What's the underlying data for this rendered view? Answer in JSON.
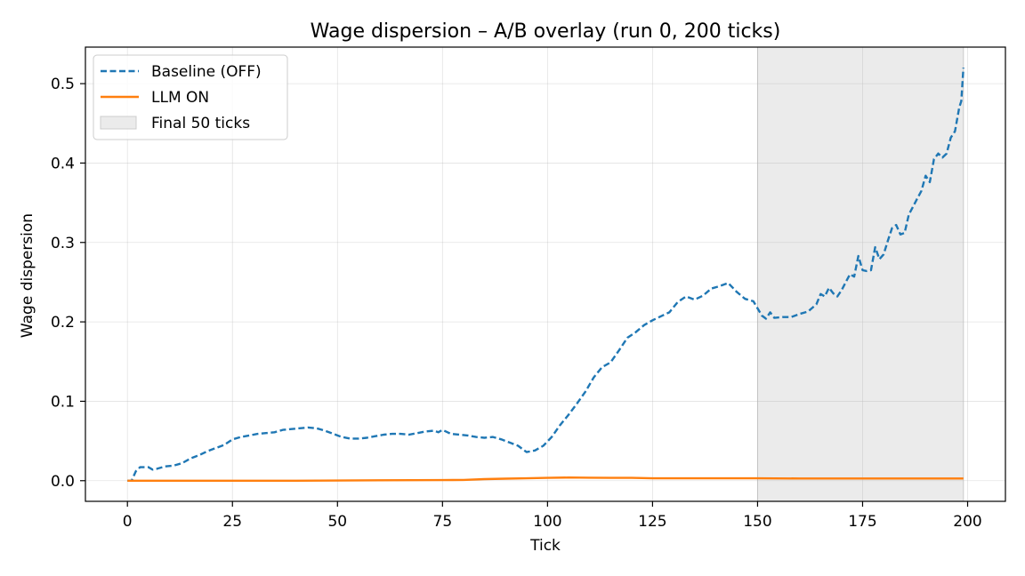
{
  "chart_data": {
    "type": "line",
    "title": "Wage dispersion – A/B overlay (run 0, 200 ticks)",
    "xlabel": "Tick",
    "ylabel": "Wage dispersion",
    "xlim": [
      -10,
      209
    ],
    "ylim": [
      -0.026,
      0.546
    ],
    "xticks": [
      0,
      25,
      50,
      75,
      100,
      125,
      150,
      175,
      200
    ],
    "xtick_labels": [
      "0",
      "25",
      "50",
      "75",
      "100",
      "125",
      "150",
      "175",
      "200"
    ],
    "yticks": [
      0.0,
      0.1,
      0.2,
      0.3,
      0.4,
      0.5
    ],
    "ytick_labels": [
      "0.0",
      "0.1",
      "0.2",
      "0.3",
      "0.4",
      "0.5"
    ],
    "grid": true,
    "legend_position": "upper-left",
    "shaded_region": {
      "label": "Final 50 ticks",
      "x_start": 150,
      "x_end": 199,
      "color": "#ebebeb"
    },
    "series": [
      {
        "name": "Baseline (OFF)",
        "color": "#1f77b4",
        "style": "dashed",
        "points": [
          [
            0,
            0.0
          ],
          [
            1,
            0.0
          ],
          [
            2,
            0.012
          ],
          [
            3,
            0.017
          ],
          [
            5,
            0.017
          ],
          [
            6,
            0.014
          ],
          [
            7,
            0.015
          ],
          [
            9,
            0.018
          ],
          [
            11,
            0.019
          ],
          [
            13,
            0.022
          ],
          [
            15,
            0.028
          ],
          [
            17,
            0.032
          ],
          [
            19,
            0.037
          ],
          [
            21,
            0.041
          ],
          [
            23,
            0.045
          ],
          [
            25,
            0.052
          ],
          [
            27,
            0.055
          ],
          [
            29,
            0.057
          ],
          [
            31,
            0.059
          ],
          [
            33,
            0.06
          ],
          [
            35,
            0.061
          ],
          [
            37,
            0.064
          ],
          [
            39,
            0.065
          ],
          [
            41,
            0.066
          ],
          [
            43,
            0.067
          ],
          [
            45,
            0.066
          ],
          [
            47,
            0.063
          ],
          [
            49,
            0.059
          ],
          [
            51,
            0.055
          ],
          [
            53,
            0.053
          ],
          [
            55,
            0.053
          ],
          [
            57,
            0.054
          ],
          [
            59,
            0.056
          ],
          [
            61,
            0.058
          ],
          [
            63,
            0.059
          ],
          [
            65,
            0.059
          ],
          [
            67,
            0.058
          ],
          [
            69,
            0.06
          ],
          [
            71,
            0.062
          ],
          [
            73,
            0.063
          ],
          [
            74,
            0.061
          ],
          [
            75,
            0.064
          ],
          [
            77,
            0.059
          ],
          [
            79,
            0.058
          ],
          [
            81,
            0.057
          ],
          [
            83,
            0.055
          ],
          [
            85,
            0.054
          ],
          [
            87,
            0.055
          ],
          [
            89,
            0.052
          ],
          [
            91,
            0.048
          ],
          [
            93,
            0.044
          ],
          [
            95,
            0.036
          ],
          [
            97,
            0.038
          ],
          [
            99,
            0.044
          ],
          [
            101,
            0.055
          ],
          [
            103,
            0.07
          ],
          [
            105,
            0.083
          ],
          [
            107,
            0.097
          ],
          [
            109,
            0.112
          ],
          [
            111,
            0.13
          ],
          [
            113,
            0.143
          ],
          [
            115,
            0.149
          ],
          [
            117,
            0.164
          ],
          [
            119,
            0.18
          ],
          [
            121,
            0.187
          ],
          [
            123,
            0.196
          ],
          [
            125,
            0.202
          ],
          [
            127,
            0.207
          ],
          [
            129,
            0.212
          ],
          [
            131,
            0.225
          ],
          [
            133,
            0.232
          ],
          [
            135,
            0.228
          ],
          [
            137,
            0.233
          ],
          [
            139,
            0.242
          ],
          [
            141,
            0.245
          ],
          [
            143,
            0.249
          ],
          [
            145,
            0.238
          ],
          [
            147,
            0.229
          ],
          [
            149,
            0.226
          ],
          [
            151,
            0.208
          ],
          [
            152,
            0.204
          ],
          [
            153,
            0.212
          ],
          [
            154,
            0.205
          ],
          [
            156,
            0.206
          ],
          [
            158,
            0.206
          ],
          [
            160,
            0.21
          ],
          [
            162,
            0.213
          ],
          [
            164,
            0.222
          ],
          [
            165,
            0.235
          ],
          [
            166,
            0.232
          ],
          [
            167,
            0.243
          ],
          [
            168,
            0.236
          ],
          [
            169,
            0.232
          ],
          [
            170,
            0.24
          ],
          [
            171,
            0.25
          ],
          [
            172,
            0.26
          ],
          [
            173,
            0.257
          ],
          [
            174,
            0.283
          ],
          [
            175,
            0.265
          ],
          [
            176,
            0.264
          ],
          [
            177,
            0.265
          ],
          [
            178,
            0.294
          ],
          [
            179,
            0.279
          ],
          [
            180,
            0.285
          ],
          [
            181,
            0.302
          ],
          [
            182,
            0.318
          ],
          [
            183,
            0.322
          ],
          [
            184,
            0.31
          ],
          [
            185,
            0.312
          ],
          [
            186,
            0.335
          ],
          [
            187,
            0.345
          ],
          [
            188,
            0.355
          ],
          [
            189,
            0.365
          ],
          [
            190,
            0.384
          ],
          [
            191,
            0.376
          ],
          [
            192,
            0.405
          ],
          [
            193,
            0.412
          ],
          [
            194,
            0.407
          ],
          [
            195,
            0.412
          ],
          [
            196,
            0.432
          ],
          [
            197,
            0.44
          ],
          [
            198,
            0.47
          ],
          [
            198.5,
            0.478
          ],
          [
            199,
            0.52
          ]
        ]
      },
      {
        "name": "LLM ON",
        "color": "#ff7f0e",
        "style": "solid",
        "points": [
          [
            0,
            0.0
          ],
          [
            20,
            0.0
          ],
          [
            40,
            0.0
          ],
          [
            60,
            0.0005
          ],
          [
            75,
            0.0008
          ],
          [
            80,
            0.001
          ],
          [
            85,
            0.002
          ],
          [
            90,
            0.0025
          ],
          [
            95,
            0.003
          ],
          [
            100,
            0.0035
          ],
          [
            105,
            0.004
          ],
          [
            110,
            0.0038
          ],
          [
            115,
            0.0035
          ],
          [
            120,
            0.0035
          ],
          [
            125,
            0.003
          ],
          [
            130,
            0.003
          ],
          [
            140,
            0.003
          ],
          [
            150,
            0.003
          ],
          [
            160,
            0.0028
          ],
          [
            170,
            0.0028
          ],
          [
            180,
            0.0028
          ],
          [
            190,
            0.0028
          ],
          [
            199,
            0.0028
          ]
        ]
      }
    ]
  }
}
